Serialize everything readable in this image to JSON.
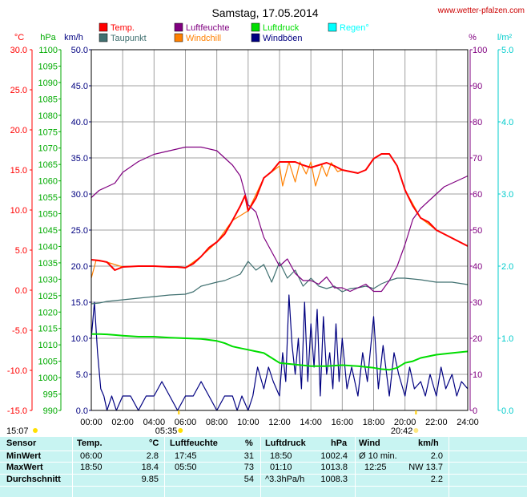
{
  "chart_data": {
    "type": "line",
    "title": "Samstag, 17.05.2014",
    "source_label": "www.wetter-pfalzen.com",
    "x_ticks": [
      "00:00",
      "02:00",
      "04:00",
      "06:00",
      "08:00",
      "10:00",
      "12:00",
      "14:00",
      "16:00",
      "18:00",
      "20:00",
      "22:00",
      "24:00"
    ],
    "xlim": [
      0,
      24
    ],
    "axes": {
      "temp": {
        "unit": "°C",
        "ticks": [
          "30.0",
          "25.0",
          "20.0",
          "15.0",
          "10.0",
          "5.0",
          "0.0",
          "-5.0",
          "-10.0",
          "-15.0"
        ],
        "range": [
          -15,
          30
        ],
        "color": "#ff0000"
      },
      "pressure": {
        "unit": "hPa",
        "ticks": [
          "1100",
          "1095",
          "1090",
          "1085",
          "1080",
          "1075",
          "1070",
          "1065",
          "1060",
          "1055",
          "1050",
          "1045",
          "1040",
          "1035",
          "1030",
          "1025",
          "1020",
          "1015",
          "1010",
          "1005",
          "1000",
          "995",
          "990"
        ],
        "range": [
          990,
          1100
        ],
        "color": "#00aa00"
      },
      "wind": {
        "unit": "km/h",
        "ticks": [
          "50.0",
          "45.0",
          "40.0",
          "35.0",
          "30.0",
          "25.0",
          "20.0",
          "15.0",
          "10.0",
          "5.0",
          "0.0"
        ],
        "range": [
          0,
          50
        ],
        "color": "#000080"
      },
      "humidity": {
        "unit": "%",
        "ticks": [
          "100",
          "90",
          "80",
          "70",
          "60",
          "50",
          "40",
          "30",
          "20",
          "10",
          "0"
        ],
        "range": [
          0,
          100
        ],
        "color": "#800080"
      },
      "rain": {
        "unit": "l/m²",
        "ticks": [
          "5.0",
          "4.0",
          "3.0",
          "2.0",
          "1.0",
          "0.0"
        ],
        "range": [
          0,
          5
        ],
        "color": "#00cccc"
      }
    },
    "legend": [
      {
        "name": "Temp.",
        "color": "#ff0000"
      },
      {
        "name": "Luftfeuchte",
        "color": "#800080"
      },
      {
        "name": "Luftdruck",
        "color": "#00dd00"
      },
      {
        "name": "Regen°",
        "color": "#00ffff"
      },
      {
        "name": "Taupunkt",
        "color": "#407070"
      },
      {
        "name": "Windchill",
        "color": "#ff8000"
      },
      {
        "name": "Windböen",
        "color": "#000080"
      }
    ],
    "series": [
      {
        "name": "Temp.",
        "axis": "temp",
        "color": "#ff0000",
        "x": [
          0,
          0.5,
          1,
          1.5,
          2,
          3,
          4,
          5,
          5.5,
          6,
          6.5,
          7,
          7.5,
          8,
          8.5,
          9,
          9.5,
          9.8,
          10,
          10.5,
          11,
          11.5,
          12,
          12.5,
          13,
          13.5,
          14,
          14.5,
          15,
          15.5,
          16,
          16.5,
          17,
          17.5,
          18,
          18.5,
          19,
          19.5,
          20,
          20.5,
          21,
          21.5,
          22,
          22.5,
          23,
          23.5,
          24
        ],
        "y": [
          3.8,
          3.7,
          3.5,
          2.5,
          2.9,
          3.0,
          3.0,
          2.9,
          2.9,
          2.8,
          3.3,
          4.2,
          5.3,
          6.0,
          7.0,
          8.7,
          10.5,
          11.8,
          9.9,
          11.5,
          14.0,
          14.8,
          16.0,
          16.0,
          16.0,
          15.6,
          15.3,
          15.6,
          15.9,
          15.5,
          15.0,
          14.8,
          14.6,
          15.0,
          16.4,
          17.0,
          17.0,
          15.5,
          12.5,
          10.5,
          9.0,
          8.5,
          7.5,
          7.0,
          6.5,
          6.0,
          5.5
        ]
      },
      {
        "name": "Windchill",
        "axis": "temp",
        "color": "#ff8000",
        "x": [
          0,
          0.3,
          1,
          2,
          3,
          4,
          5,
          6,
          7,
          8,
          9,
          10,
          11,
          12,
          12.2,
          12.6,
          13,
          13.3,
          13.7,
          14,
          14.3,
          14.7,
          15,
          15.3,
          15.7,
          16,
          16.5,
          17,
          17.5,
          18,
          18.5,
          19,
          19.5,
          20,
          21,
          22,
          23,
          24
        ],
        "y": [
          1.5,
          3.7,
          3.5,
          2.9,
          3.0,
          3.0,
          2.9,
          2.8,
          4.2,
          6.0,
          8.7,
          9.9,
          14.0,
          15.5,
          13.0,
          16.0,
          13.5,
          16.0,
          14.5,
          16.0,
          13.0,
          15.6,
          14.2,
          15.9,
          14.8,
          15.0,
          14.8,
          14.6,
          15.0,
          16.4,
          17.0,
          17.0,
          15.5,
          12.5,
          9.0,
          7.5,
          6.5,
          5.5
        ]
      },
      {
        "name": "Luftfeuchte",
        "axis": "humidity",
        "color": "#800080",
        "x": [
          0,
          0.5,
          1,
          1.5,
          2,
          3,
          4,
          5,
          6,
          6.5,
          7,
          8,
          8.5,
          9,
          9.5,
          10,
          10.5,
          11,
          11.5,
          12,
          12.5,
          13,
          13.5,
          14,
          14.5,
          15,
          15.5,
          16,
          16.5,
          17,
          17.5,
          18,
          18.5,
          19,
          19.5,
          20,
          20.5,
          21,
          21.5,
          22,
          22.5,
          23,
          23.5,
          24
        ],
        "y": [
          59,
          61,
          62,
          63,
          66,
          69,
          71,
          72,
          73,
          73,
          73,
          72,
          70,
          68,
          65,
          57,
          55,
          48,
          44,
          40,
          42,
          38,
          36,
          36,
          35,
          37,
          34,
          34,
          33,
          34,
          35,
          33,
          33,
          36,
          40,
          46,
          53,
          56,
          58,
          60,
          62,
          63,
          64,
          65
        ]
      },
      {
        "name": "Taupunkt",
        "axis": "temp",
        "color": "#407070",
        "x": [
          0,
          0.5,
          1,
          2,
          3,
          4,
          5,
          6,
          6.5,
          7,
          8,
          8.5,
          9,
          9.5,
          10,
          10.5,
          11,
          11.5,
          12,
          12.5,
          13,
          13.5,
          14,
          14.5,
          15,
          15.5,
          16,
          16.5,
          17,
          17.5,
          18,
          18.5,
          19,
          19.5,
          20,
          21,
          22,
          23,
          24
        ],
        "y": [
          -1.7,
          -1.6,
          -1.4,
          -1.2,
          -1.0,
          -0.8,
          -0.6,
          -0.5,
          -0.2,
          0.5,
          1.0,
          1.2,
          1.6,
          2.0,
          3.6,
          2.5,
          3.2,
          1.0,
          3.5,
          1.5,
          2.5,
          0.5,
          1.5,
          0.5,
          0.2,
          0.5,
          -0.2,
          0.2,
          0.3,
          0.5,
          0.2,
          0.8,
          1.2,
          1.5,
          1.5,
          1.3,
          1.0,
          1.0,
          0.7
        ]
      },
      {
        "name": "Luftdruck",
        "axis": "pressure",
        "color": "#00dd00",
        "x": [
          0,
          0.5,
          1,
          1.5,
          2,
          3,
          4,
          5,
          6,
          7,
          8,
          8.5,
          9,
          9.5,
          10,
          10.5,
          11,
          11.5,
          12,
          13,
          14,
          15,
          16,
          17,
          18,
          18.5,
          19,
          19.5,
          20,
          20.5,
          21,
          22,
          23,
          24
        ],
        "y": [
          1013.3,
          1013.3,
          1013.2,
          1013.0,
          1012.8,
          1012.5,
          1012.5,
          1012.2,
          1012.0,
          1011.8,
          1011.2,
          1010.5,
          1009.5,
          1009.0,
          1008.5,
          1008.0,
          1007.5,
          1006.0,
          1004.5,
          1004.0,
          1003.5,
          1003.5,
          1003.8,
          1003.5,
          1003.0,
          1002.6,
          1002.4,
          1003.0,
          1004.5,
          1005.0,
          1006.0,
          1007.0,
          1007.5,
          1008.0
        ]
      },
      {
        "name": "Windböen",
        "axis": "wind",
        "color": "#000080",
        "x": [
          0,
          0.2,
          0.4,
          0.6,
          0.8,
          1,
          1.3,
          1.6,
          2,
          2.5,
          3,
          3.5,
          4,
          4.5,
          5,
          5.5,
          6,
          6.5,
          7,
          7.5,
          8,
          8.5,
          9,
          9.3,
          9.6,
          10,
          10.3,
          10.6,
          11,
          11.3,
          11.6,
          12,
          12.2,
          12.4,
          12.6,
          12.8,
          13,
          13.2,
          13.4,
          13.6,
          13.8,
          14,
          14.2,
          14.4,
          14.6,
          14.8,
          15,
          15.2,
          15.4,
          15.6,
          15.8,
          16,
          16.3,
          16.6,
          17,
          17.3,
          17.6,
          18,
          18.3,
          18.6,
          19,
          19.3,
          19.6,
          20,
          20.3,
          20.6,
          21,
          21.3,
          21.6,
          22,
          22.3,
          22.6,
          23,
          23.3,
          23.6,
          24
        ],
        "y": [
          10,
          15,
          8,
          3,
          2,
          0,
          2,
          0,
          2,
          2,
          0,
          2,
          2,
          4,
          2,
          0,
          2,
          2,
          4,
          2,
          0,
          2,
          2,
          0,
          2,
          0,
          2,
          6,
          3,
          6,
          4,
          2,
          8,
          4,
          16,
          9,
          5,
          10,
          3,
          15,
          4,
          12,
          6,
          14,
          2,
          13,
          5,
          8,
          3,
          12,
          4,
          10,
          3,
          6,
          2,
          8,
          4,
          13,
          3,
          9,
          2,
          8,
          5,
          2,
          6,
          3,
          4,
          2,
          5,
          2,
          6,
          3,
          5,
          2,
          4,
          3
        ]
      }
    ],
    "rain_markers": [
      {
        "label": "15:07",
        "pos": "left"
      },
      {
        "label": "05:35",
        "pos": "sunrise"
      },
      {
        "label": "20:42",
        "pos": "sunset"
      }
    ],
    "marker_x": [
      5.58,
      20.7
    ]
  },
  "stats": {
    "headers": [
      "Sensor",
      "Temp.",
      "°C",
      "Luftfeuchte",
      "%",
      "Luftdruck",
      "hPa",
      "Wind",
      "km/h"
    ],
    "rows": [
      {
        "label": "MinWert",
        "temp_time": "06:00",
        "temp": "2.8",
        "hum_time": "17:45",
        "hum": "31",
        "press_time": "18:50",
        "press": "1002.4",
        "wind_time": "Ø 10 min.",
        "wind": "2.0"
      },
      {
        "label": "MaxWert",
        "temp_time": "18:50",
        "temp": "18.4",
        "hum_time": "05:50",
        "hum": "73",
        "press_time": "01:10",
        "press": "1013.8",
        "wind_time": "12:25",
        "wind": "NW 13.7"
      },
      {
        "label": "Durchschnitt",
        "temp_time": "",
        "temp": "9.85",
        "hum_time": "",
        "hum": "54",
        "press_time": "^3.3hPa/h",
        "press": "1008.3",
        "wind_time": "",
        "wind": "2.2"
      }
    ]
  }
}
